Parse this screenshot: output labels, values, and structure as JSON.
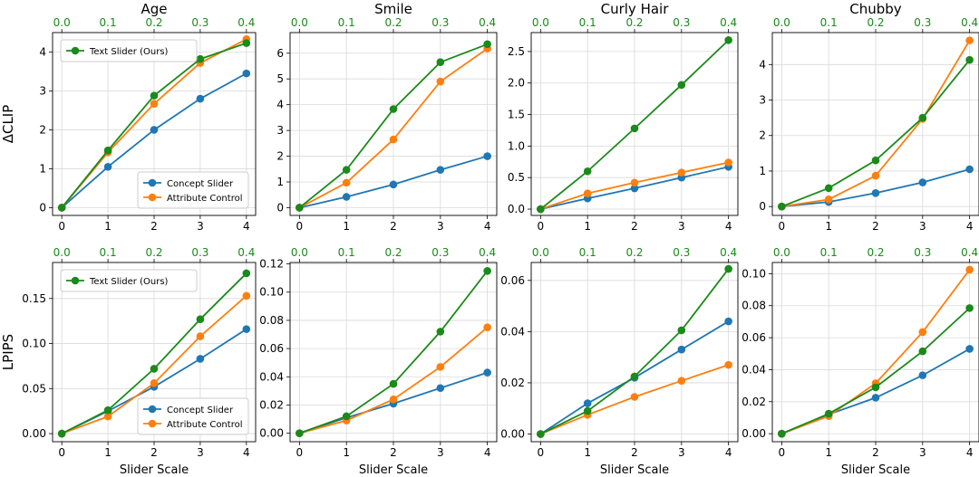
{
  "figure": {
    "top_axis_ticks": [
      "0.0",
      "0.1",
      "0.2",
      "0.3",
      "0.4"
    ],
    "x_ticks": [
      "0",
      "1",
      "2",
      "3",
      "4"
    ],
    "xlabel": "Slider Scale",
    "row_labels": [
      "ΔCLIP",
      "LPIPS"
    ],
    "colors": {
      "text_slider": "#1a8a1a",
      "concept_slider": "#1f77b4",
      "attribute_control": "#ff7f0e",
      "top_axis": "#1a8a1a",
      "grid": "#d9d9d9"
    },
    "legend": {
      "text_slider": "Text Slider (Ours)",
      "concept_slider": "Concept Slider",
      "attribute_control": "Attribute Control"
    }
  },
  "chart_data": [
    {
      "type": "line",
      "title": "Age",
      "ylabel": "ΔCLIP",
      "xlabel": "",
      "x": [
        0,
        1,
        2,
        3,
        4
      ],
      "ylim": [
        -0.2,
        4.5
      ],
      "yticks": [
        0,
        1,
        2,
        3,
        4
      ],
      "ytick_labels": [
        "0",
        "1",
        "2",
        "3",
        "4"
      ],
      "series": [
        {
          "name": "Concept Slider",
          "values": [
            0,
            1.05,
            2.0,
            2.8,
            3.45
          ]
        },
        {
          "name": "Attribute Control",
          "values": [
            0,
            1.42,
            2.67,
            3.72,
            4.33
          ]
        },
        {
          "name": "Text Slider (Ours)",
          "values": [
            0,
            1.47,
            2.88,
            3.82,
            4.23
          ]
        }
      ],
      "legend_top": true,
      "legend_bottom": true
    },
    {
      "type": "line",
      "title": "Smile",
      "ylabel": "",
      "xlabel": "",
      "x": [
        0,
        1,
        2,
        3,
        4
      ],
      "ylim": [
        -0.3,
        6.8
      ],
      "yticks": [
        0,
        1,
        2,
        3,
        4,
        5,
        6
      ],
      "ytick_labels": [
        "0",
        "1",
        "2",
        "3",
        "4",
        "5",
        "6"
      ],
      "series": [
        {
          "name": "Concept Slider",
          "values": [
            0,
            0.42,
            0.9,
            1.47,
            2.0
          ]
        },
        {
          "name": "Attribute Control",
          "values": [
            0,
            0.97,
            2.65,
            4.9,
            6.18
          ]
        },
        {
          "name": "Text Slider (Ours)",
          "values": [
            0,
            1.47,
            3.83,
            5.65,
            6.35
          ]
        }
      ]
    },
    {
      "type": "line",
      "title": "Curly Hair",
      "ylabel": "",
      "xlabel": "",
      "x": [
        0,
        1,
        2,
        3,
        4
      ],
      "ylim": [
        -0.1,
        2.8
      ],
      "yticks": [
        0,
        0.5,
        1.0,
        1.5,
        2.0,
        2.5
      ],
      "ytick_labels": [
        "0.0",
        "0.5",
        "1.0",
        "1.5",
        "2.0",
        "2.5"
      ],
      "series": [
        {
          "name": "Concept Slider",
          "values": [
            0,
            0.17,
            0.33,
            0.5,
            0.67
          ]
        },
        {
          "name": "Attribute Control",
          "values": [
            0,
            0.25,
            0.42,
            0.58,
            0.74
          ]
        },
        {
          "name": "Text Slider (Ours)",
          "values": [
            0,
            0.6,
            1.28,
            1.97,
            2.68
          ]
        }
      ]
    },
    {
      "type": "line",
      "title": "Chubby",
      "ylabel": "",
      "xlabel": "",
      "x": [
        0,
        1,
        2,
        3,
        4
      ],
      "ylim": [
        -0.25,
        4.9
      ],
      "yticks": [
        0,
        1,
        2,
        3,
        4
      ],
      "ytick_labels": [
        "0",
        "1",
        "2",
        "3",
        "4"
      ],
      "series": [
        {
          "name": "Concept Slider",
          "values": [
            0,
            0.13,
            0.38,
            0.68,
            1.05
          ]
        },
        {
          "name": "Attribute Control",
          "values": [
            0,
            0.2,
            0.87,
            2.47,
            4.68
          ]
        },
        {
          "name": "Text Slider (Ours)",
          "values": [
            0,
            0.52,
            1.3,
            2.5,
            4.13
          ]
        }
      ]
    },
    {
      "type": "line",
      "title": "",
      "ylabel": "LPIPS",
      "xlabel": "Slider Scale",
      "x": [
        0,
        1,
        2,
        3,
        4
      ],
      "ylim": [
        -0.009,
        0.19
      ],
      "yticks": [
        0,
        0.05,
        0.1,
        0.15
      ],
      "ytick_labels": [
        "0.00",
        "0.05",
        "0.10",
        "0.15"
      ],
      "series": [
        {
          "name": "Concept Slider",
          "values": [
            0,
            0.025,
            0.052,
            0.083,
            0.116
          ]
        },
        {
          "name": "Attribute Control",
          "values": [
            0,
            0.019,
            0.056,
            0.108,
            0.153
          ]
        },
        {
          "name": "Text Slider (Ours)",
          "values": [
            0,
            0.026,
            0.072,
            0.127,
            0.178
          ]
        }
      ],
      "legend_top": true,
      "legend_bottom": true
    },
    {
      "type": "line",
      "title": "",
      "ylabel": "",
      "xlabel": "Slider Scale",
      "x": [
        0,
        1,
        2,
        3,
        4
      ],
      "ylim": [
        -0.006,
        0.121
      ],
      "yticks": [
        0,
        0.02,
        0.04,
        0.06,
        0.08,
        0.1,
        0.12
      ],
      "ytick_labels": [
        "0.00",
        "0.02",
        "0.04",
        "0.06",
        "0.08",
        "0.10",
        "0.12"
      ],
      "series": [
        {
          "name": "Concept Slider",
          "values": [
            0,
            0.011,
            0.021,
            0.032,
            0.043
          ]
        },
        {
          "name": "Attribute Control",
          "values": [
            0,
            0.009,
            0.024,
            0.047,
            0.075
          ]
        },
        {
          "name": "Text Slider (Ours)",
          "values": [
            0,
            0.012,
            0.035,
            0.072,
            0.115
          ]
        }
      ]
    },
    {
      "type": "line",
      "title": "",
      "ylabel": "",
      "xlabel": "Slider Scale",
      "x": [
        0,
        1,
        2,
        3,
        4
      ],
      "ylim": [
        -0.003,
        0.067
      ],
      "yticks": [
        0,
        0.02,
        0.04,
        0.06
      ],
      "ytick_labels": [
        "0.00",
        "0.02",
        "0.04",
        "0.06"
      ],
      "series": [
        {
          "name": "Concept Slider",
          "values": [
            0,
            0.012,
            0.022,
            0.033,
            0.044
          ]
        },
        {
          "name": "Attribute Control",
          "values": [
            0,
            0.0075,
            0.0145,
            0.0208,
            0.027
          ]
        },
        {
          "name": "Text Slider (Ours)",
          "values": [
            0,
            0.009,
            0.0225,
            0.0405,
            0.0645
          ]
        }
      ]
    },
    {
      "type": "line",
      "title": "",
      "ylabel": "",
      "xlabel": "Slider Scale",
      "x": [
        0,
        1,
        2,
        3,
        4
      ],
      "ylim": [
        -0.005,
        0.107
      ],
      "yticks": [
        0,
        0.02,
        0.04,
        0.06,
        0.08,
        0.1
      ],
      "ytick_labels": [
        "0.00",
        "0.02",
        "0.04",
        "0.06",
        "0.08",
        "0.10"
      ],
      "series": [
        {
          "name": "Concept Slider",
          "values": [
            0,
            0.012,
            0.0225,
            0.0365,
            0.053
          ]
        },
        {
          "name": "Attribute Control",
          "values": [
            0,
            0.011,
            0.0315,
            0.0635,
            0.1025
          ]
        },
        {
          "name": "Text Slider (Ours)",
          "values": [
            0,
            0.0125,
            0.029,
            0.0515,
            0.0785
          ]
        }
      ]
    }
  ]
}
